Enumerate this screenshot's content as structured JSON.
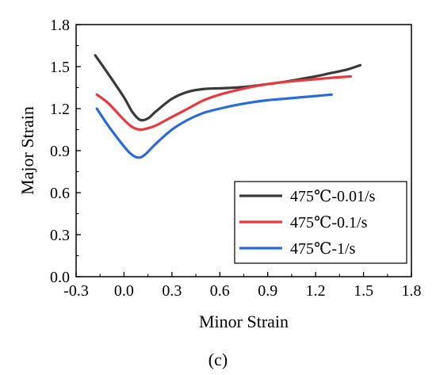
{
  "chart_data": {
    "type": "line",
    "xlabel": "Minor Strain",
    "ylabel": "Major Strain",
    "xlim": [
      -0.3,
      1.8
    ],
    "ylim": [
      0.0,
      1.8
    ],
    "xticks": [
      "-0.3",
      "0.0",
      "0.3",
      "0.6",
      "0.9",
      "1.2",
      "1.5",
      "1.8"
    ],
    "yticks": [
      "0.0",
      "0.3",
      "0.6",
      "0.9",
      "1.2",
      "1.5",
      "1.8"
    ],
    "legend_position": "bottom-right",
    "grid": false,
    "series": [
      {
        "name": "475℃-0.01/s",
        "color": "#3a3a3a",
        "x": [
          -0.18,
          -0.1,
          0.0,
          0.05,
          0.1,
          0.15,
          0.2,
          0.3,
          0.4,
          0.5,
          0.6,
          0.7,
          0.8,
          0.9,
          1.0,
          1.1,
          1.2,
          1.3,
          1.4,
          1.48
        ],
        "y": [
          1.58,
          1.45,
          1.28,
          1.18,
          1.12,
          1.13,
          1.18,
          1.27,
          1.32,
          1.34,
          1.345,
          1.35,
          1.36,
          1.375,
          1.39,
          1.41,
          1.43,
          1.455,
          1.48,
          1.51
        ]
      },
      {
        "name": "475℃-0.1/s",
        "color": "#e8393f",
        "x": [
          -0.17,
          -0.1,
          0.0,
          0.05,
          0.1,
          0.15,
          0.2,
          0.3,
          0.4,
          0.5,
          0.6,
          0.7,
          0.8,
          0.9,
          1.0,
          1.1,
          1.2,
          1.3,
          1.42
        ],
        "y": [
          1.3,
          1.24,
          1.12,
          1.07,
          1.05,
          1.06,
          1.08,
          1.14,
          1.2,
          1.26,
          1.3,
          1.33,
          1.355,
          1.375,
          1.39,
          1.4,
          1.41,
          1.42,
          1.43
        ]
      },
      {
        "name": "475℃-1/s",
        "color": "#2a6bd8",
        "x": [
          -0.17,
          -0.1,
          0.0,
          0.05,
          0.09,
          0.13,
          0.2,
          0.3,
          0.4,
          0.5,
          0.6,
          0.7,
          0.8,
          0.9,
          1.0,
          1.1,
          1.2,
          1.3
        ],
        "y": [
          1.2,
          1.08,
          0.93,
          0.87,
          0.85,
          0.87,
          0.95,
          1.05,
          1.12,
          1.17,
          1.2,
          1.225,
          1.245,
          1.26,
          1.27,
          1.28,
          1.29,
          1.3
        ]
      }
    ]
  },
  "caption": "(c)"
}
